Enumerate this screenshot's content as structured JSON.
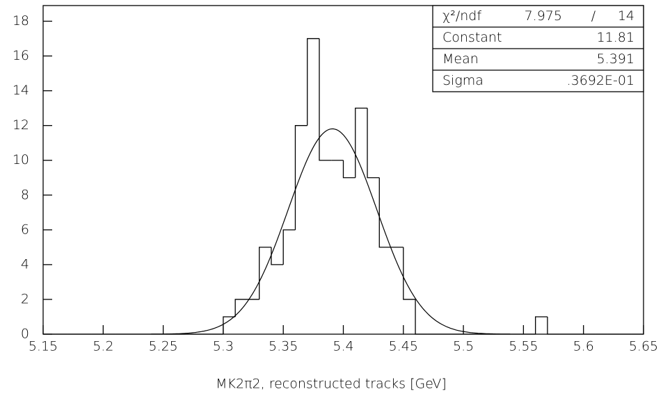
{
  "chart_data": {
    "type": "histogram",
    "x_label": "MK2π2, reconstructed tracks [GeV]",
    "bins": [
      5.15,
      5.16,
      5.17,
      5.18,
      5.19,
      5.2,
      5.21,
      5.22,
      5.23,
      5.24,
      5.25,
      5.26,
      5.27,
      5.28,
      5.29,
      5.3,
      5.31,
      5.32,
      5.33,
      5.34,
      5.35,
      5.36,
      5.37,
      5.38,
      5.39,
      5.4,
      5.41,
      5.42,
      5.43,
      5.44,
      5.45,
      5.46,
      5.47,
      5.48,
      5.49,
      5.5,
      5.51,
      5.52,
      5.53,
      5.54,
      5.55,
      5.56,
      5.57,
      5.58,
      5.59,
      5.6,
      5.61,
      5.62,
      5.63,
      5.64,
      5.65
    ],
    "values": [
      0,
      0,
      0,
      0,
      0,
      0,
      0,
      0,
      0,
      0,
      0,
      0,
      0,
      0,
      0,
      1,
      2,
      2,
      5,
      4,
      6,
      12,
      17,
      10,
      10,
      9,
      13,
      9,
      5,
      5,
      2,
      0,
      0,
      0,
      0,
      0,
      0,
      0,
      0,
      0,
      0,
      1,
      0,
      0,
      0,
      0,
      0,
      0,
      0,
      0
    ],
    "color": "#000000",
    "xlim": [
      5.15,
      5.65
    ],
    "xticks": [
      5.15,
      5.2,
      5.25,
      5.3,
      5.35,
      5.4,
      5.45,
      5.5,
      5.55,
      5.6,
      5.65
    ],
    "ylim": [
      0,
      18.9
    ],
    "yticks": [
      0,
      2,
      4,
      6,
      8,
      10,
      12,
      14,
      16,
      18
    ],
    "fit": {
      "chi2_label": "χ²/ndf",
      "chi2": 7.975,
      "separator": "/",
      "ndf": 14,
      "params": [
        {
          "name": "Constant",
          "value": 11.81
        },
        {
          "name": "Mean",
          "value": 5.391
        },
        {
          "name": "Sigma",
          "value": 0.03692,
          "value_label": ".3692E-01"
        }
      ]
    }
  }
}
